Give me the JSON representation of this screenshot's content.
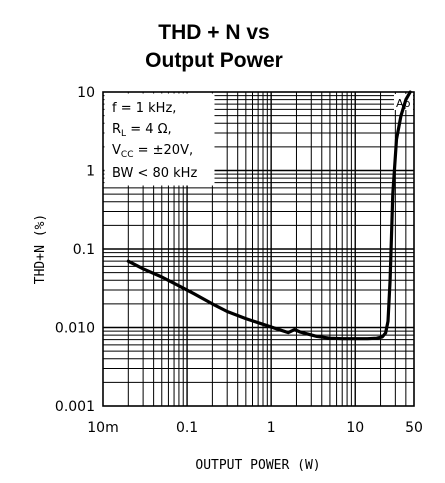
{
  "chart_data": {
    "type": "line",
    "title_line1": "THD + N vs",
    "title_line2": "Output Power",
    "xlabel": "OUTPUT POWER (W)",
    "ylabel": "THD+N (%)",
    "x_scale": "log",
    "y_scale": "log",
    "xlim": [
      0.01,
      50
    ],
    "ylim": [
      0.001,
      10
    ],
    "x_ticks": [
      {
        "value": 0.01,
        "label": "10m"
      },
      {
        "value": 0.1,
        "label": "0.1"
      },
      {
        "value": 1,
        "label": "1"
      },
      {
        "value": 10,
        "label": "10"
      },
      {
        "value": 50,
        "label": "50"
      }
    ],
    "y_ticks": [
      {
        "value": 10,
        "label": "10"
      },
      {
        "value": 1,
        "label": "1"
      },
      {
        "value": 0.1,
        "label": "0.1"
      },
      {
        "value": 0.01,
        "label": "0.010"
      },
      {
        "value": 0.001,
        "label": "0.001"
      }
    ],
    "grid": true,
    "legend_box": {
      "line1": "f = 1 kHz,",
      "line2_main": "R",
      "line2_sub": "L",
      "line2_rest": " = 4 Ω,",
      "line3_main": "V",
      "line3_sub": "CC",
      "line3_rest": " = ±20V,",
      "line4": "BW < 80 kHz",
      "placement": "top-left"
    },
    "watermark": "Ap",
    "series": [
      {
        "x": [
          0.02,
          0.03,
          0.05,
          0.08,
          0.12,
          0.2,
          0.3,
          0.5,
          0.8,
          1.2,
          1.6,
          1.9,
          2.2,
          2.8,
          3.5,
          5,
          7,
          10,
          14,
          18,
          21,
          23,
          24.5,
          26,
          28,
          31,
          35,
          40,
          45
        ],
        "y": [
          0.07,
          0.056,
          0.044,
          0.034,
          0.027,
          0.02,
          0.016,
          0.013,
          0.011,
          0.0095,
          0.0086,
          0.0094,
          0.0088,
          0.0082,
          0.0077,
          0.0073,
          0.0072,
          0.0072,
          0.0072,
          0.0073,
          0.0076,
          0.0085,
          0.012,
          0.04,
          0.5,
          2.5,
          5,
          8,
          10
        ]
      }
    ]
  }
}
